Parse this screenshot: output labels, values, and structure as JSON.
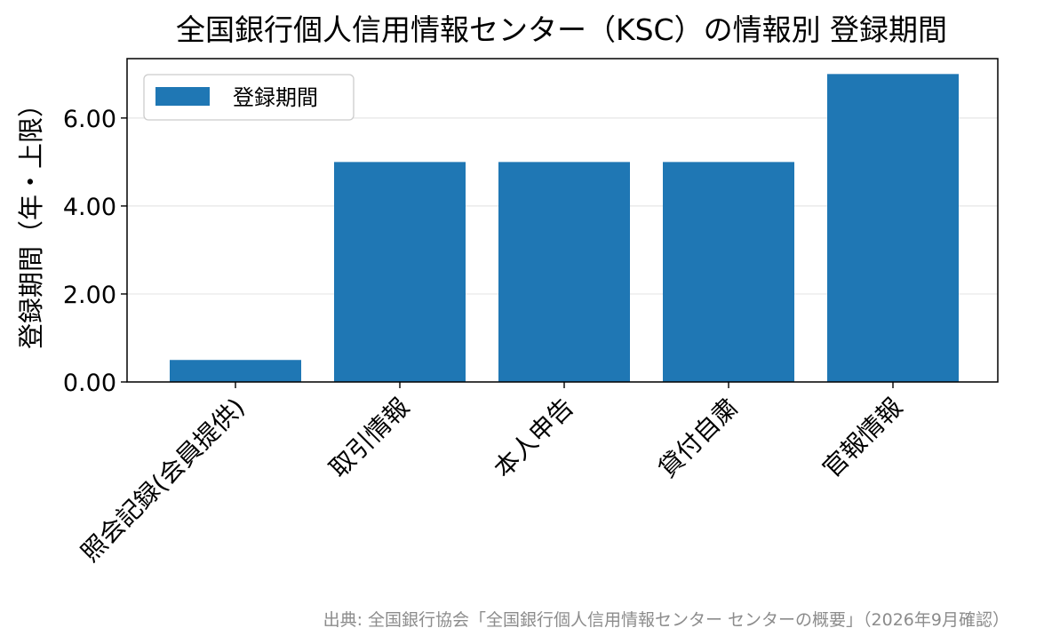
{
  "chart_data": {
    "type": "bar",
    "title": "全国銀行個人信用情報センター（KSC）の情報別 登録期間",
    "ylabel": "登録期間（年・上限）",
    "xlabel": "",
    "categories": [
      "照会記録(会員提供)",
      "取引情報",
      "本人申告",
      "貸付自粛",
      "官報情報"
    ],
    "series": [
      {
        "name": "登録期間",
        "values": [
          0.5,
          5,
          5,
          5,
          7
        ],
        "color": "#1f77b4"
      }
    ],
    "yticks": [
      "0.00",
      "2.00",
      "4.00",
      "6.00"
    ],
    "ylim": [
      0,
      7.35
    ],
    "grid": true,
    "legend_position": "top-left"
  },
  "source": "出典: 全国銀行協会「全国銀行個人信用情報センター センターの概要」（2026年9月確認）"
}
